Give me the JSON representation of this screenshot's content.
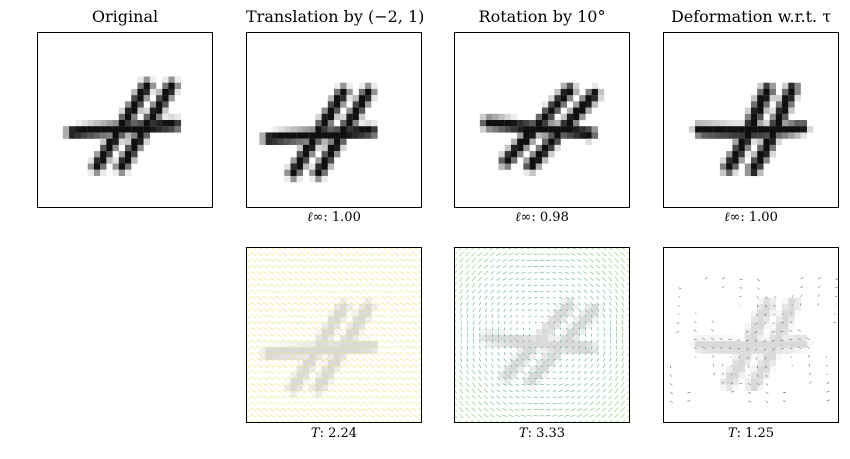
{
  "figure": {
    "columns": [
      {
        "title": "Original"
      },
      {
        "title": "Translation by (−2, 1)",
        "top_caption": {
          "symbol": "ℓ∞",
          "value": "1.00"
        },
        "bottom_caption": {
          "symbol": "T",
          "value": "2.24"
        }
      },
      {
        "title": "Rotation by 10°",
        "top_caption": {
          "symbol": "ℓ∞",
          "value": "0.98"
        },
        "bottom_caption": {
          "symbol": "T",
          "value": "3.33"
        }
      },
      {
        "title": "Deformation w.r.t. τ",
        "top_caption": {
          "symbol": "ℓ∞",
          "value": "1.00"
        },
        "bottom_caption": {
          "symbol": "T",
          "value": "1.25"
        }
      }
    ]
  },
  "digit_shown": "4",
  "colors": {
    "digit_dark": "#111111",
    "digit_faded": "#d9d9d9",
    "field_translation": "#e8e070",
    "field_rotation_inner": "#2a8fa0",
    "field_rotation_outer": "#9ed27a",
    "field_deformation": "#333333"
  }
}
